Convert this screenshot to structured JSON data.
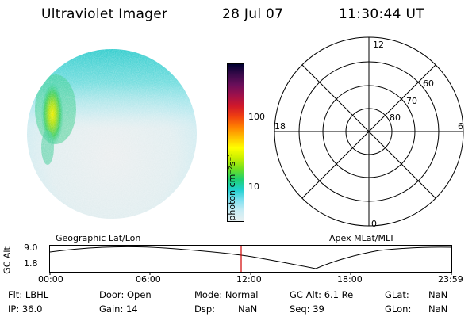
{
  "header": {
    "title": "Ultraviolet Imager",
    "date": "28 Jul 07",
    "time": "11:30:44 UT"
  },
  "colorbar": {
    "unit_label": "photon cm⁻²s⁻¹",
    "ticks": [
      "100",
      "10"
    ],
    "colors": [
      "#000030",
      "#3a0a4a",
      "#6b0e5a",
      "#a0104a",
      "#d0182a",
      "#f04010",
      "#ff8000",
      "#ffc000",
      "#ffff00",
      "#c8f000",
      "#70e020",
      "#20d070",
      "#20d0d0",
      "#80e0f0",
      "#c8ecf4",
      "#e8f0f2"
    ]
  },
  "polar": {
    "labels_top": "12",
    "labels_bottom": "0",
    "labels_left": "18",
    "labels_right": "6",
    "lat_labels": [
      "60",
      "70",
      "80"
    ]
  },
  "timeline": {
    "left_label": "Geographic Lat/Lon",
    "right_label": "Apex MLat/MLT",
    "axis_label": "GC Alt",
    "y_ticks": [
      "9.0",
      "1.8"
    ],
    "x_ticks": [
      "00:00",
      "06:00",
      "12:00",
      "18:00",
      "23:59"
    ],
    "marker_color": "#d00000"
  },
  "footer": {
    "flt": "Flt:  LBHL",
    "ip": "IP:  36.0",
    "door": "Door:  Open",
    "gain": "Gain:  14",
    "mode": "Mode:  Normal",
    "dsp_label": "Dsp:",
    "dsp_value": "NaN",
    "gcalt": "GC Alt:  6.1 Re",
    "seq": "Seq:  39",
    "glat_label": "GLat:",
    "glat_value": "NaN",
    "glon_label": "GLon:",
    "glon_value": "NaN"
  }
}
